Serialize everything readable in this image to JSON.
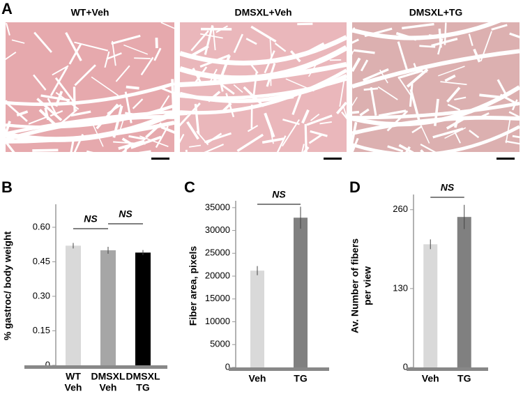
{
  "panels": {
    "a": {
      "letter": "A",
      "images": [
        "WT+Veh",
        "DMSXL+Veh",
        "DMSXL+TG"
      ]
    }
  },
  "chart_data": [
    {
      "type": "bar",
      "letter": "B",
      "ylabel": [
        "% gastroc/ body weight"
      ],
      "categories": [
        [
          "WT",
          "Veh"
        ],
        [
          "DMSXL",
          "Veh"
        ],
        [
          "DMSXL",
          "TG"
        ]
      ],
      "series": [
        {
          "values": [
            0.52,
            0.5,
            0.49
          ],
          "errors": [
            0.012,
            0.015,
            0.011
          ],
          "colors": [
            "#d9d9d9",
            "#a6a6a6",
            "#000000"
          ]
        }
      ],
      "ylim": [
        0,
        0.7
      ],
      "yticks": [
        0,
        0.15,
        {
          "value": 0.3,
          "label": "0.30"
        },
        0.45,
        {
          "value": 0.6,
          "label": "0.60"
        }
      ],
      "annotations": [
        "NS",
        "NS"
      ]
    },
    {
      "type": "bar",
      "letter": "C",
      "ylabel": [
        "Fiber area, pixels"
      ],
      "categories": [
        [
          "Veh"
        ],
        [
          "TG"
        ]
      ],
      "series": [
        {
          "values": [
            21200,
            32800
          ],
          "errors": [
            1000,
            2400
          ],
          "colors": [
            "#d9d9d9",
            "#808080"
          ]
        }
      ],
      "ylim": [
        0,
        36500
      ],
      "yticks": [
        0,
        5000,
        10000,
        15000,
        20000,
        25000,
        30000,
        35000
      ],
      "annotations": [
        "NS"
      ]
    },
    {
      "type": "bar",
      "letter": "D",
      "ylabel": [
        "Av. Number of fibers",
        "per view"
      ],
      "categories": [
        [
          "Veh"
        ],
        [
          "TG"
        ]
      ],
      "series": [
        {
          "values": [
            203,
            248
          ],
          "errors": [
            8,
            20
          ],
          "colors": [
            "#d9d9d9",
            "#808080"
          ]
        }
      ],
      "ylim": [
        0,
        285
      ],
      "yticks": [
        0,
        130,
        260
      ],
      "annotations": [
        "NS"
      ]
    }
  ]
}
